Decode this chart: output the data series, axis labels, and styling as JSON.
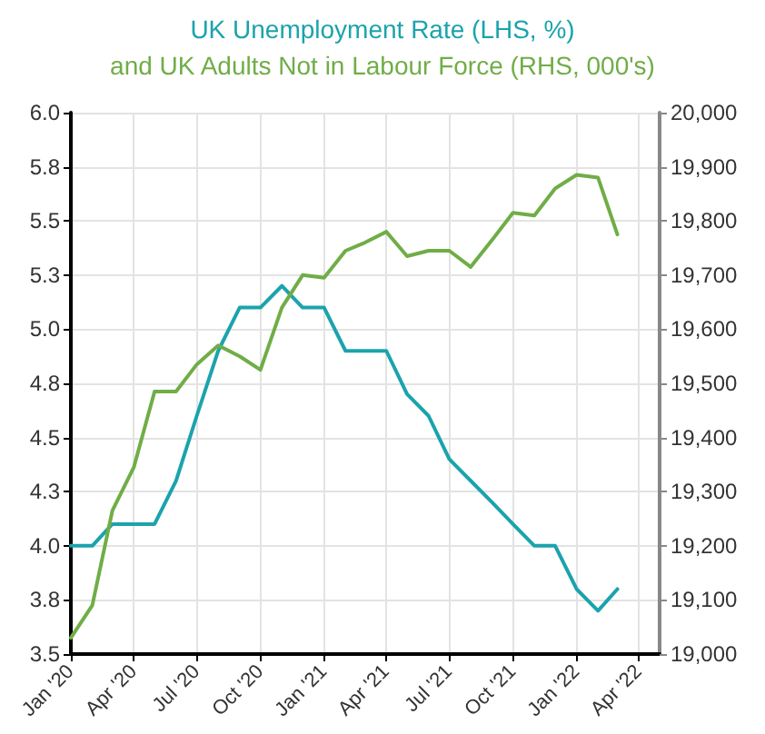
{
  "chart_data": {
    "type": "line",
    "title": "UK Unemployment Rate (LHS, %)",
    "subtitle": "and UK Adults Not in Labour Force (RHS, 000's)",
    "x": [
      "2020-01",
      "2020-02",
      "2020-03",
      "2020-04",
      "2020-05",
      "2020-06",
      "2020-07",
      "2020-08",
      "2020-09",
      "2020-10",
      "2020-11",
      "2020-12",
      "2021-01",
      "2021-02",
      "2021-03",
      "2021-04",
      "2021-05",
      "2021-06",
      "2021-07",
      "2021-08",
      "2021-09",
      "2021-10",
      "2021-11",
      "2021-12",
      "2022-01",
      "2022-02",
      "2022-03"
    ],
    "series": [
      {
        "color": "#1ba3ad",
        "values": [
          4.0,
          4.0,
          4.1,
          4.1,
          4.1,
          4.3,
          4.6,
          4.9,
          5.1,
          5.1,
          5.2,
          5.1,
          5.1,
          4.9,
          4.9,
          4.9,
          4.7,
          4.6,
          4.4,
          4.3,
          4.2,
          4.1,
          4.0,
          4.0,
          3.8,
          3.7,
          3.8
        ]
      },
      {
        "color": "#70ad47",
        "axis": "y2",
        "values": [
          19030,
          19090,
          19265,
          19345,
          19485,
          19485,
          19535,
          19570,
          19550,
          19525,
          19640,
          19700,
          19695,
          19745,
          19760,
          19780,
          19735,
          19745,
          19745,
          19715,
          19765,
          19815,
          19810,
          19860,
          19885,
          19880,
          19775
        ]
      }
    ],
    "xlim": [
      "2020-01",
      "2022-05"
    ],
    "xticks": [
      {
        "value": "2020-01",
        "label": "Jan '20"
      },
      {
        "value": "2020-04",
        "label": "Apr '20"
      },
      {
        "value": "2020-07",
        "label": "Jul '20"
      },
      {
        "value": "2020-10",
        "label": "Oct '20"
      },
      {
        "value": "2021-01",
        "label": "Jan '21"
      },
      {
        "value": "2021-04",
        "label": "Apr '21"
      },
      {
        "value": "2021-07",
        "label": "Jul '21"
      },
      {
        "value": "2021-10",
        "label": "Oct '21"
      },
      {
        "value": "2022-01",
        "label": "Jan '22"
      },
      {
        "value": "2022-04",
        "label": "Apr '22"
      }
    ],
    "ylim": [
      3.5,
      6.0
    ],
    "yticks": [
      3.5,
      {
        "value": 3.75,
        "label": "3.8"
      },
      {
        "value": 4,
        "label": "4.0"
      },
      {
        "value": 4.25,
        "label": "4.3"
      },
      4.5,
      {
        "value": 4.75,
        "label": "4.8"
      },
      {
        "value": 5,
        "label": "5.0"
      },
      {
        "value": 5.25,
        "label": "5.3"
      },
      5.5,
      {
        "value": 5.75,
        "label": "5.8"
      },
      {
        "value": 6,
        "label": "6.0"
      }
    ],
    "y2lim": [
      19000,
      20000
    ],
    "y2ticks": [
      {
        "value": 19000,
        "label": "19,000"
      },
      {
        "value": 19100,
        "label": "19,100"
      },
      {
        "value": 19200,
        "label": "19,200"
      },
      {
        "value": 19300,
        "label": "19,300"
      },
      {
        "value": 19400,
        "label": "19,400"
      },
      {
        "value": 19500,
        "label": "19,500"
      },
      {
        "value": 19600,
        "label": "19,600"
      },
      {
        "value": 19700,
        "label": "19,700"
      },
      {
        "value": 19800,
        "label": "19,800"
      },
      {
        "value": 19900,
        "label": "19,900"
      },
      {
        "value": 20000,
        "label": "20,000"
      }
    ],
    "grid": true,
    "marker": "none",
    "line_style": "solid"
  }
}
